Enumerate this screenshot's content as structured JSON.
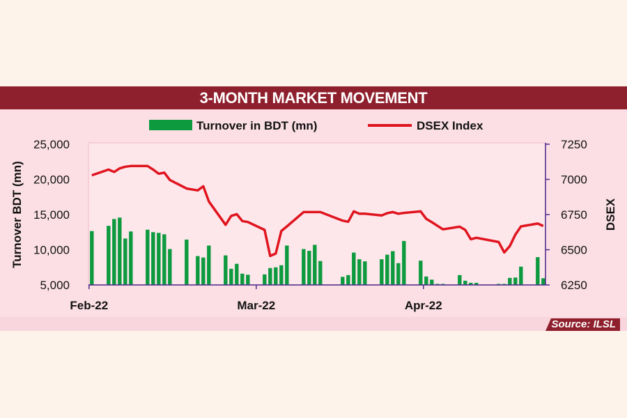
{
  "chart_data": {
    "type": "bar+line",
    "title": "3-MONTH MARKET MOVEMENT",
    "source": "Source: ILSL",
    "ylabel_left": "Turnover BDT (mn)",
    "ylabel_right": "DSEX",
    "ylim_left": [
      5000,
      25000
    ],
    "ylim_right": [
      6250,
      7250
    ],
    "yticks_left": [
      "5,000",
      "10,000",
      "15,000",
      "20,000",
      "25,000"
    ],
    "yticks_left_values": [
      5000,
      10000,
      15000,
      20000,
      25000
    ],
    "yticks_right": [
      "6250",
      "6500",
      "6750",
      "7000",
      "7250"
    ],
    "yticks_right_values": [
      6250,
      6500,
      6750,
      7000,
      7250
    ],
    "xlim_slots": [
      -0.6,
      81.4
    ],
    "month_labels": [
      {
        "label": "Feb-22",
        "slot": -0.5
      },
      {
        "label": "Mar-22",
        "slot": 29.5
      },
      {
        "label": "Apr-22",
        "slot": 59.5
      }
    ],
    "legend": [
      {
        "name": "Turnover in BDT (mn)",
        "color": "#0d9a3f"
      },
      {
        "name": "DSEX Index",
        "color": "#e0141e"
      }
    ],
    "legend_placement": "top-center",
    "series": [
      {
        "name": "Turnover in BDT (mn)",
        "type": "bar",
        "color": "#0d9a3f",
        "slots": [
          0,
          3,
          4,
          5,
          6,
          7,
          10,
          11,
          12,
          13,
          14,
          17,
          19,
          20,
          21,
          24,
          25,
          26,
          27,
          28,
          31,
          32,
          33,
          34,
          35,
          38,
          39,
          40,
          41,
          45,
          46,
          47,
          48,
          49,
          52,
          53,
          54,
          55,
          56,
          59,
          60,
          61,
          62,
          63,
          66,
          67,
          68,
          69,
          73,
          74,
          75,
          76,
          77,
          80,
          81
        ],
        "values": [
          12650,
          13400,
          14370,
          14570,
          11600,
          12600,
          12850,
          12500,
          12400,
          12200,
          10100,
          11450,
          9100,
          8900,
          10600,
          9200,
          7300,
          8000,
          6600,
          6450,
          6500,
          7400,
          7500,
          7800,
          10600,
          10100,
          9850,
          10700,
          8400,
          6150,
          6400,
          9600,
          8650,
          8350,
          8650,
          9300,
          9800,
          8100,
          11250,
          8450,
          6200,
          5750,
          5100,
          5150,
          6400,
          5600,
          5300,
          5300,
          4900,
          4900,
          6000,
          6050,
          7600,
          8950,
          5950
        ]
      },
      {
        "name": "DSEX Index",
        "type": "line",
        "color": "#e0141e",
        "slots": [
          0,
          3,
          4,
          5,
          6,
          7,
          10,
          11,
          12,
          13,
          14,
          17,
          19,
          20,
          21,
          24,
          25,
          26,
          27,
          28,
          31,
          32,
          33,
          34,
          35,
          38,
          41,
          45,
          46,
          47,
          48,
          49,
          52,
          53,
          54,
          55,
          56,
          59,
          60,
          61,
          63,
          66,
          67,
          68,
          69,
          73,
          74,
          75,
          76,
          77,
          80,
          81
        ],
        "values": [
          7029,
          7070,
          7053,
          7078,
          7090,
          7095,
          7095,
          7070,
          7040,
          7048,
          6996,
          6935,
          6922,
          6951,
          6843,
          6677,
          6740,
          6753,
          6704,
          6697,
          6641,
          6456,
          6473,
          6633,
          6666,
          6768,
          6768,
          6707,
          6699,
          6773,
          6756,
          6756,
          6744,
          6760,
          6768,
          6756,
          6762,
          6773,
          6720,
          6696,
          6645,
          6664,
          6641,
          6575,
          6585,
          6555,
          6481,
          6526,
          6608,
          6666,
          6686,
          6669
        ]
      }
    ]
  }
}
